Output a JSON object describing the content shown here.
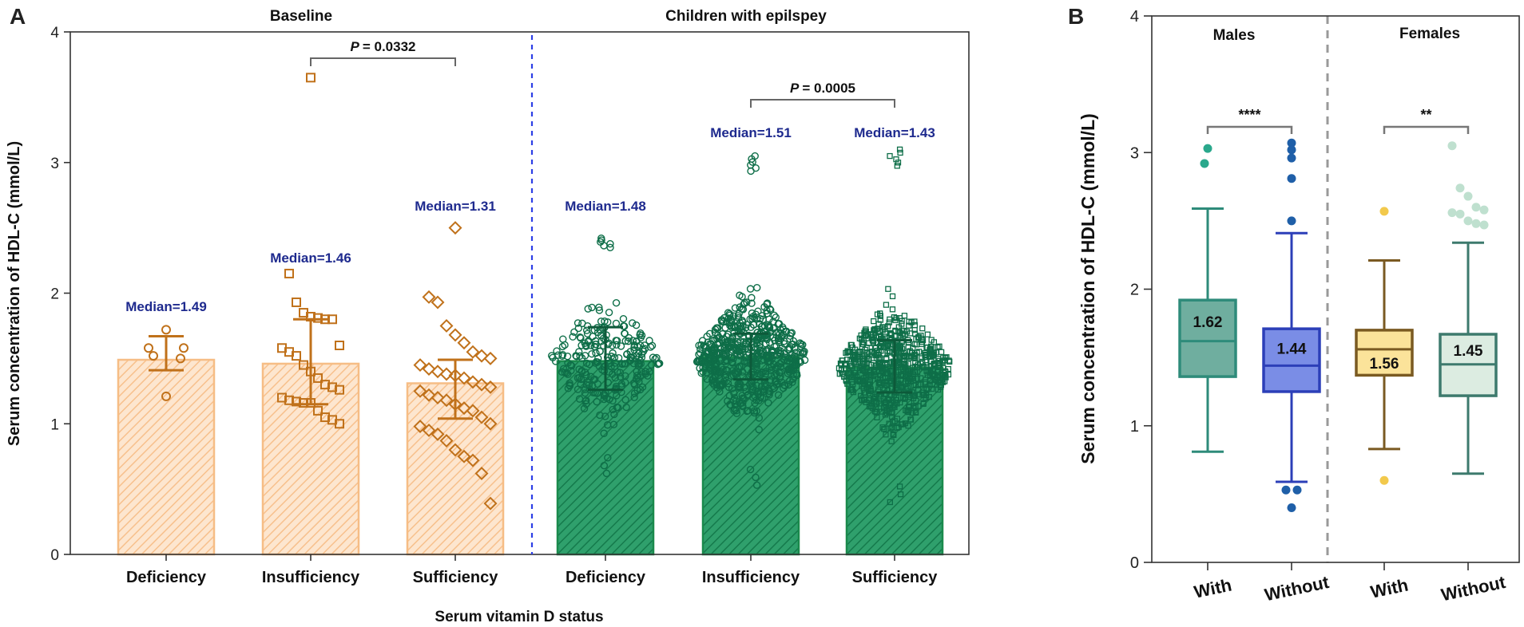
{
  "panel_labels": {
    "a": "A",
    "b": "B"
  },
  "chart_data": [
    {
      "type": "bar",
      "panel": "A",
      "ylabel": "Serum concentration of HDL-C (mmol/L)",
      "xlabel": "Serum vitamin D status",
      "ylim": [
        0,
        4
      ],
      "yticks": [
        "0",
        "1",
        "2",
        "3",
        "4"
      ],
      "groups": [
        {
          "name": "Baseline",
          "color": "#c0711a",
          "fill": "#f8c896"
        },
        {
          "name": "Children with epilspey",
          "color": "#0e6e48",
          "fill": "#2fa06c"
        }
      ],
      "categories": [
        "Deficiency",
        "Insufficiency",
        "Sufficiency",
        "Deficiency",
        "Insufficiency",
        "Sufficiency"
      ],
      "values": [
        1.49,
        1.46,
        1.31,
        1.48,
        1.51,
        1.43
      ],
      "median_labels": [
        "Median=1.49",
        "Median=1.46",
        "Median=1.31",
        "Median=1.48",
        "Median=1.51",
        "Median=1.43"
      ],
      "error_bars": [
        {
          "low": 1.41,
          "high": 1.67
        },
        {
          "low": 1.15,
          "high": 1.8
        },
        {
          "low": 1.04,
          "high": 1.49
        },
        {
          "low": 1.26,
          "high": 1.74
        },
        {
          "low": 1.34,
          "high": 1.69
        },
        {
          "low": 1.24,
          "high": 1.64
        }
      ],
      "points": [
        [
          1.72,
          1.58,
          1.58,
          1.52,
          1.5,
          1.21
        ],
        [
          3.65,
          2.15,
          1.93,
          1.85,
          1.82,
          1.81,
          1.8,
          1.8,
          1.6,
          1.58,
          1.55,
          1.52,
          1.45,
          1.4,
          1.35,
          1.3,
          1.28,
          1.26,
          1.2,
          1.18,
          1.17,
          1.16,
          1.16,
          1.1,
          1.05,
          1.03,
          1.0
        ],
        [
          2.5,
          1.97,
          1.93,
          1.75,
          1.68,
          1.62,
          1.55,
          1.52,
          1.5,
          1.45,
          1.42,
          1.4,
          1.38,
          1.37,
          1.35,
          1.32,
          1.3,
          1.28,
          1.25,
          1.22,
          1.2,
          1.18,
          1.15,
          1.12,
          1.1,
          1.05,
          1.0,
          0.98,
          0.95,
          0.92,
          0.87,
          0.8,
          0.75,
          0.72,
          0.62,
          0.39
        ]
      ],
      "scatter_summary": [
        {
          "count": 260,
          "min": 0.62,
          "max": 2.42,
          "median": 1.48
        },
        {
          "count": 620,
          "min": 0.53,
          "max": 3.05,
          "median": 1.51
        },
        {
          "count": 700,
          "min": 0.4,
          "max": 3.1,
          "median": 1.43
        }
      ],
      "comparisons": [
        {
          "label": "P",
          "value": "=  0.0332",
          "from": 1,
          "to": 2
        },
        {
          "label": "P",
          "value": "= 0.0005",
          "from": 4,
          "to": 5
        }
      ]
    },
    {
      "type": "box",
      "panel": "B",
      "ylabel": "Serum concentration of HDL-C (mmol/L)",
      "ylim": [
        0,
        4
      ],
      "yticks": [
        "0",
        "1",
        "2",
        "3",
        "4"
      ],
      "groups": [
        "Males",
        "Females"
      ],
      "categories": [
        "With",
        "Without",
        "With",
        "Without"
      ],
      "boxes": [
        {
          "min": 0.81,
          "q1": 1.36,
          "median": 1.62,
          "q3": 1.92,
          "max": 2.59,
          "label": "1.62",
          "outliers": [
            3.03,
            2.92
          ],
          "stroke": "#2e8b7a",
          "fill": "#6fae9f"
        },
        {
          "min": 0.59,
          "q1": 1.25,
          "median": 1.44,
          "q3": 1.71,
          "max": 2.41,
          "label": "1.44",
          "outliers": [
            3.07,
            3.02,
            2.96,
            2.81,
            2.5,
            0.53,
            0.53,
            0.4
          ],
          "stroke": "#2c3fb8",
          "fill": "#7a8de6"
        },
        {
          "min": 0.83,
          "q1": 1.37,
          "median": 1.56,
          "q3": 1.7,
          "max": 2.21,
          "label": "1.56",
          "outliers": [
            2.57,
            0.6
          ],
          "stroke": "#7a5a22",
          "fill": "#fbe39a"
        },
        {
          "min": 0.65,
          "q1": 1.22,
          "median": 1.45,
          "q3": 1.67,
          "max": 2.34,
          "label": "1.45",
          "outliers": [
            3.05,
            2.74,
            2.68,
            2.6,
            2.58,
            2.56,
            2.55,
            2.5,
            2.48,
            2.47
          ],
          "stroke": "#3d7a6d",
          "fill": "#dcece1"
        }
      ],
      "significance": [
        {
          "label": "****",
          "from": 0,
          "to": 1
        },
        {
          "label": "**",
          "from": 2,
          "to": 3
        }
      ]
    }
  ]
}
